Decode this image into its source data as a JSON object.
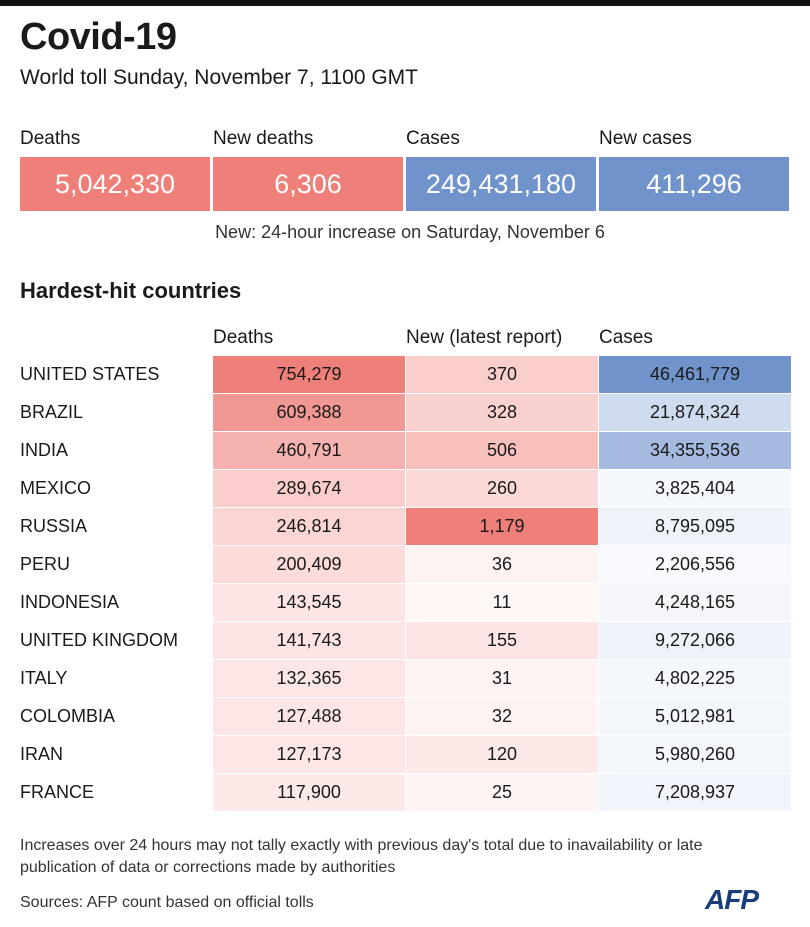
{
  "header": {
    "title": "Covid-19",
    "subtitle": "World toll Sunday, November 7, 1100 GMT"
  },
  "kpis": [
    {
      "label": "Deaths",
      "value": "5,042,330",
      "color": "#ef7f79"
    },
    {
      "label": "New deaths",
      "value": "6,306",
      "color": "#ef7f79"
    },
    {
      "label": "Cases",
      "value": "249,431,180",
      "color": "#7193cc"
    },
    {
      "label": "New cases",
      "value": "411,296",
      "color": "#7193cc"
    }
  ],
  "kpi_note": "New: 24-hour increase on Saturday, November 6",
  "section_title": "Hardest-hit countries",
  "chart_data": {
    "type": "table",
    "title": "Hardest-hit countries",
    "columns": [
      "Deaths",
      "New (latest report)",
      "Cases"
    ],
    "rows": [
      {
        "country": "UNITED STATES",
        "deaths": "754,279",
        "new": "370",
        "cases": "46,461,779"
      },
      {
        "country": "BRAZIL",
        "deaths": "609,388",
        "new": "328",
        "cases": "21,874,324"
      },
      {
        "country": "INDIA",
        "deaths": "460,791",
        "new": "506",
        "cases": "34,355,536"
      },
      {
        "country": "MEXICO",
        "deaths": "289,674",
        "new": "260",
        "cases": "3,825,404"
      },
      {
        "country": "RUSSIA",
        "deaths": "246,814",
        "new": "1,179",
        "cases": "8,795,095"
      },
      {
        "country": "PERU",
        "deaths": "200,409",
        "new": "36",
        "cases": "2,206,556"
      },
      {
        "country": "INDONESIA",
        "deaths": "143,545",
        "new": "11",
        "cases": "4,248,165"
      },
      {
        "country": "UNITED KINGDOM",
        "deaths": "141,743",
        "new": "155",
        "cases": "9,272,066"
      },
      {
        "country": "ITALY",
        "deaths": "132,365",
        "new": "31",
        "cases": "4,802,225"
      },
      {
        "country": "COLOMBIA",
        "deaths": "127,488",
        "new": "32",
        "cases": "5,012,981"
      },
      {
        "country": "IRAN",
        "deaths": "127,173",
        "new": "120",
        "cases": "5,980,260"
      },
      {
        "country": "FRANCE",
        "deaths": "117,900",
        "new": "25",
        "cases": "7,208,937"
      }
    ],
    "color_scale": {
      "red": "#ef7f79",
      "blue": "#7193cc"
    }
  },
  "footnote": "Increases over 24 hours may not tally exactly with previous day's total due to inavailability or late publication of data or corrections made by authorities",
  "sources": "Sources: AFP count based on official tolls",
  "logo_text": "AFP"
}
